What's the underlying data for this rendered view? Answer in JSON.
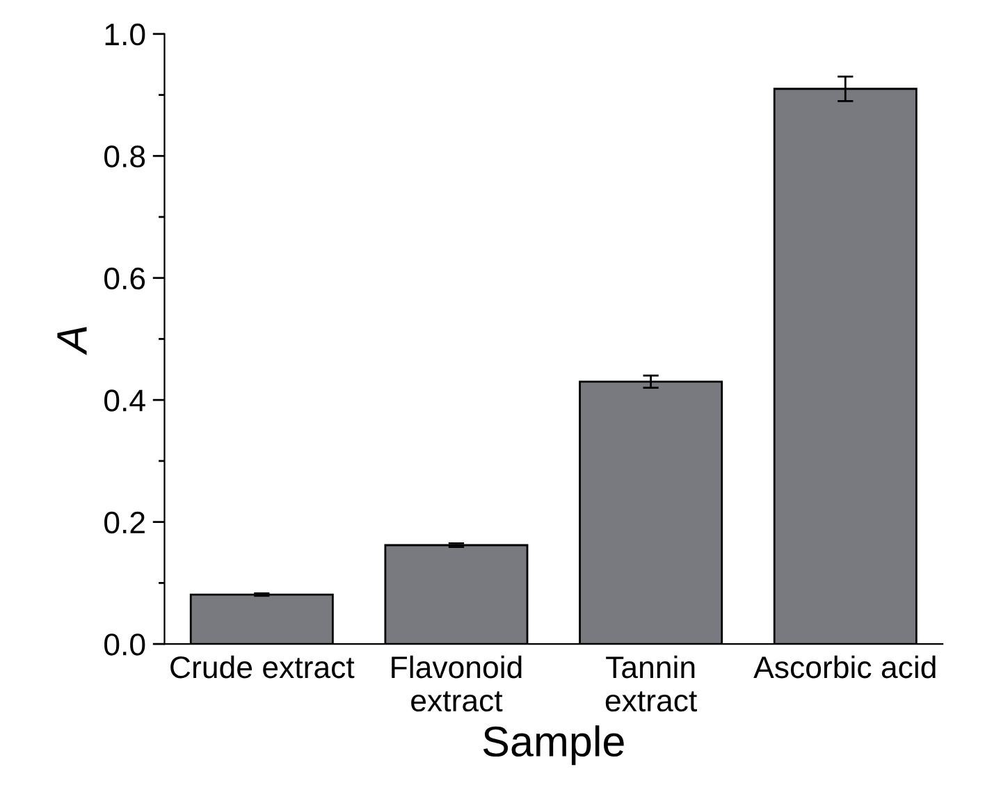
{
  "chart_data": {
    "type": "bar",
    "xlabel": "Sample",
    "ylabel": "A",
    "categories": [
      "Crude extract",
      "Flavonoid\nextract",
      "Tannin\nextract",
      "Ascorbic acid"
    ],
    "values": [
      0.081,
      0.162,
      0.43,
      0.91
    ],
    "errors": [
      0.002,
      0.003,
      0.01,
      0.02
    ],
    "color": "#797a7f",
    "ylim": [
      0,
      1.0
    ],
    "yticks": [
      {
        "value": 0.0,
        "label": "0.0"
      },
      {
        "value": 0.1,
        "label": null
      },
      {
        "value": 0.2,
        "label": "0.2"
      },
      {
        "value": 0.3,
        "label": null
      },
      {
        "value": 0.4,
        "label": "0.4"
      },
      {
        "value": 0.5,
        "label": null
      },
      {
        "value": 0.6,
        "label": "0.6"
      },
      {
        "value": 0.7,
        "label": null
      },
      {
        "value": 0.8,
        "label": "0.8"
      },
      {
        "value": 0.9,
        "label": null
      },
      {
        "value": 1.0,
        "label": "1.0"
      }
    ],
    "grid": false,
    "legend": false
  }
}
